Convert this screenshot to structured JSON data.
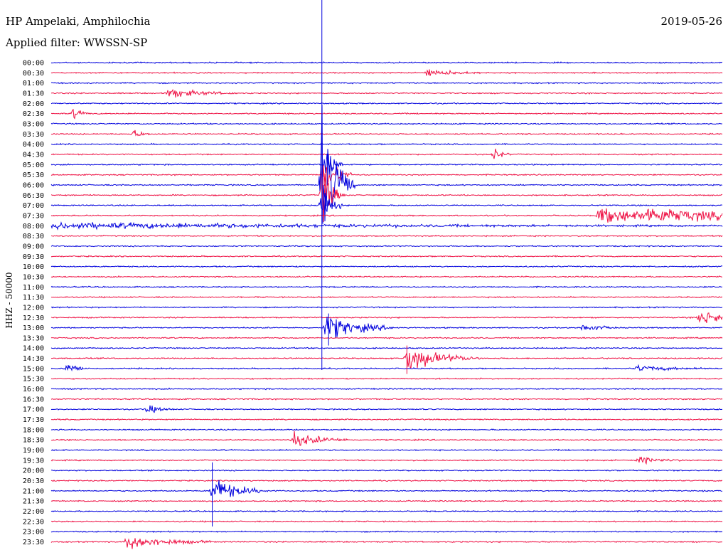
{
  "header": {
    "station": "HP Ampelaki, Amphilochia",
    "filter": "Applied filter: WWSSN-SP",
    "date": "2019-05-26"
  },
  "chart_data": {
    "type": "line",
    "title": "HP Ampelaki, Amphilochia",
    "subtitle": "Applied filter: WWSSN-SP",
    "date": "2019-05-26",
    "ylabel": "HHZ - 50000",
    "row_labels": [
      "00:00",
      "00:30",
      "01:00",
      "01:30",
      "02:00",
      "02:30",
      "03:00",
      "03:30",
      "04:00",
      "04:30",
      "05:00",
      "05:30",
      "06:00",
      "06:30",
      "07:00",
      "07:30",
      "08:00",
      "08:30",
      "09:00",
      "09:30",
      "10:00",
      "10:30",
      "11:00",
      "11:30",
      "12:00",
      "12:30",
      "13:00",
      "13:30",
      "14:00",
      "14:30",
      "15:00",
      "15:30",
      "16:00",
      "16:30",
      "17:00",
      "17:30",
      "18:00",
      "18:30",
      "19:00",
      "19:30",
      "20:00",
      "20:30",
      "21:00",
      "21:30",
      "22:00",
      "22:30",
      "23:00",
      "23:30"
    ],
    "trace_colors": [
      "#0000dd",
      "#ee1144"
    ],
    "trace_window_minutes": 30,
    "events": [
      {
        "row": 1,
        "minute": 16.8,
        "amp": 0.6,
        "dur": 1.0
      },
      {
        "row": 3,
        "minute": 5.2,
        "amp": 0.9,
        "dur": 1.2
      },
      {
        "row": 5,
        "minute": 1.0,
        "amp": 0.9,
        "dur": 0.3
      },
      {
        "row": 7,
        "minute": 3.7,
        "amp": 0.8,
        "dur": 0.3
      },
      {
        "row": 9,
        "minute": 19.8,
        "amp": 1.0,
        "dur": 0.3
      },
      {
        "row": 10,
        "minute": 12.3,
        "amp": 3.0,
        "dur": 0.3
      },
      {
        "row": 11,
        "minute": 12.2,
        "amp": 4.0,
        "dur": 0.5
      },
      {
        "row": 12,
        "minute": 12.1,
        "amp": 12.0,
        "dur": 0.6
      },
      {
        "row": 13,
        "minute": 12.1,
        "amp": 5.0,
        "dur": 0.4
      },
      {
        "row": 14,
        "minute": 12.1,
        "amp": 3.0,
        "dur": 0.4
      },
      {
        "row": 15,
        "minute": 26.5,
        "amp": 0.9,
        "dur": 4.5
      },
      {
        "row": 15,
        "minute": 24.5,
        "amp": 1.3,
        "dur": 2.5
      },
      {
        "row": 16,
        "minute": 0.1,
        "amp": 0.5,
        "dur": 12.0
      },
      {
        "row": 25,
        "minute": 29.0,
        "amp": 1.3,
        "dur": 1.2
      },
      {
        "row": 26,
        "minute": 12.3,
        "amp": 2.3,
        "dur": 1.2
      },
      {
        "row": 26,
        "minute": 23.8,
        "amp": 0.8,
        "dur": 0.6
      },
      {
        "row": 29,
        "minute": 15.9,
        "amp": 2.2,
        "dur": 1.3
      },
      {
        "row": 30,
        "minute": 0.7,
        "amp": 1.0,
        "dur": 0.4
      },
      {
        "row": 30,
        "minute": 26.2,
        "amp": 0.5,
        "dur": 1.3
      },
      {
        "row": 34,
        "minute": 4.3,
        "amp": 0.7,
        "dur": 0.5
      },
      {
        "row": 37,
        "minute": 10.8,
        "amp": 1.4,
        "dur": 1.0
      },
      {
        "row": 39,
        "minute": 26.3,
        "amp": 0.6,
        "dur": 0.8
      },
      {
        "row": 42,
        "minute": 7.2,
        "amp": 2.3,
        "dur": 1.0
      },
      {
        "row": 47,
        "minute": 3.4,
        "amp": 1.2,
        "dur": 1.5
      }
    ],
    "grid": false
  }
}
